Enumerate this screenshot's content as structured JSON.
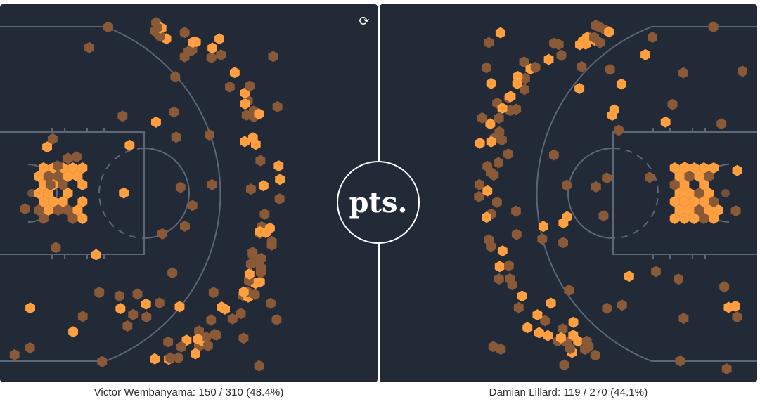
{
  "colors": {
    "background": "#222a38",
    "court_lines": "#6b7687",
    "made": "#ff9f40",
    "missed": "#8a5a38"
  },
  "logo": {
    "text": "pts."
  },
  "refresh": {
    "icon": "refresh-icon",
    "glyph": "⟳"
  },
  "players": [
    {
      "name": "Victor Wembanyama",
      "caption": "Victor Wembanyama: 150 / 310 (48.4%)",
      "basket_side": "left"
    },
    {
      "name": "Damian Lillard",
      "caption": "Damian Lillard: 119 / 270 (44.1%)",
      "basket_side": "right"
    }
  ]
}
